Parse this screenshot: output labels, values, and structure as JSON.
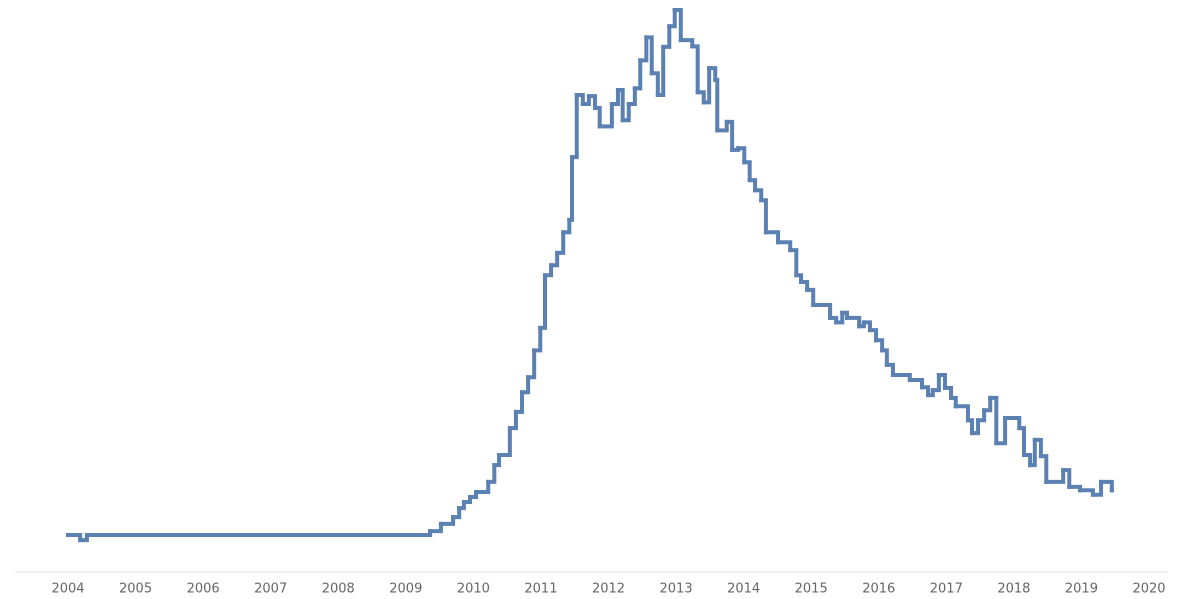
{
  "chart_data": {
    "type": "line",
    "step": "post",
    "color": "#5b80b2",
    "x": [
      2004.0,
      2004.18,
      2004.28,
      2009.36,
      2009.52,
      2009.7,
      2009.79,
      2009.86,
      2009.95,
      2010.04,
      2010.22,
      2010.31,
      2010.38,
      2010.54,
      2010.63,
      2010.72,
      2010.81,
      2010.9,
      2010.99,
      2011.06,
      2011.15,
      2011.24,
      2011.33,
      2011.42,
      2011.46,
      2011.53,
      2011.62,
      2011.71,
      2011.8,
      2011.87,
      2012.05,
      2012.14,
      2012.21,
      2012.3,
      2012.39,
      2012.47,
      2012.56,
      2012.64,
      2012.73,
      2012.81,
      2012.9,
      2012.98,
      2013.07,
      2013.24,
      2013.32,
      2013.41,
      2013.49,
      2013.58,
      2013.61,
      2013.75,
      2013.83,
      2013.92,
      2014.01,
      2014.09,
      2014.17,
      2014.26,
      2014.33,
      2014.51,
      2014.69,
      2014.78,
      2014.85,
      2014.94,
      2015.03,
      2015.28,
      2015.37,
      2015.46,
      2015.53,
      2015.71,
      2015.78,
      2015.87,
      2015.96,
      2016.05,
      2016.12,
      2016.21,
      2016.46,
      2016.64,
      2016.73,
      2016.8,
      2016.89,
      2016.98,
      2017.07,
      2017.14,
      2017.32,
      2017.38,
      2017.47,
      2017.56,
      2017.65,
      2017.74,
      2017.87,
      2018.08,
      2018.15,
      2018.24,
      2018.31,
      2018.4,
      2018.48,
      2018.73,
      2018.82,
      2018.98,
      2019.17,
      2019.29,
      2019.45
    ],
    "values": [
      6.6,
      5.7,
      6.6,
      7.3,
      8.6,
      9.8,
      11.4,
      12.5,
      13.4,
      14.3,
      16.1,
      19.1,
      20.9,
      25.7,
      28.6,
      32.1,
      34.8,
      39.6,
      43.6,
      53.0,
      54.8,
      57.0,
      60.7,
      62.9,
      74.1,
      85.2,
      83.6,
      85.0,
      82.9,
      79.6,
      83.6,
      86.1,
      80.7,
      83.6,
      86.4,
      91.4,
      95.5,
      89.1,
      85.2,
      93.8,
      97.5,
      100.4,
      95.0,
      93.9,
      85.7,
      83.9,
      90.0,
      87.9,
      78.9,
      80.4,
      75.4,
      75.7,
      73.2,
      70.0,
      68.2,
      66.4,
      60.7,
      58.9,
      57.5,
      53.0,
      51.8,
      50.4,
      47.7,
      45.4,
      44.6,
      46.3,
      45.4,
      43.9,
      44.6,
      43.2,
      41.4,
      39.6,
      37.0,
      35.2,
      34.3,
      33.0,
      31.6,
      32.5,
      35.2,
      32.9,
      31.1,
      29.6,
      27.1,
      24.8,
      27.1,
      28.9,
      31.1,
      23.0,
      27.5,
      25.7,
      20.9,
      19.1,
      23.6,
      20.7,
      16.1,
      18.2,
      15.2,
      14.6,
      13.8,
      16.1,
      14.6
    ],
    "xlim": [
      2004,
      2020
    ],
    "xticks": [
      2004,
      2005,
      2006,
      2007,
      2008,
      2009,
      2010,
      2011,
      2012,
      2013,
      2014,
      2015,
      2016,
      2017,
      2018,
      2019,
      2020
    ],
    "ylim": [
      0,
      102
    ]
  }
}
